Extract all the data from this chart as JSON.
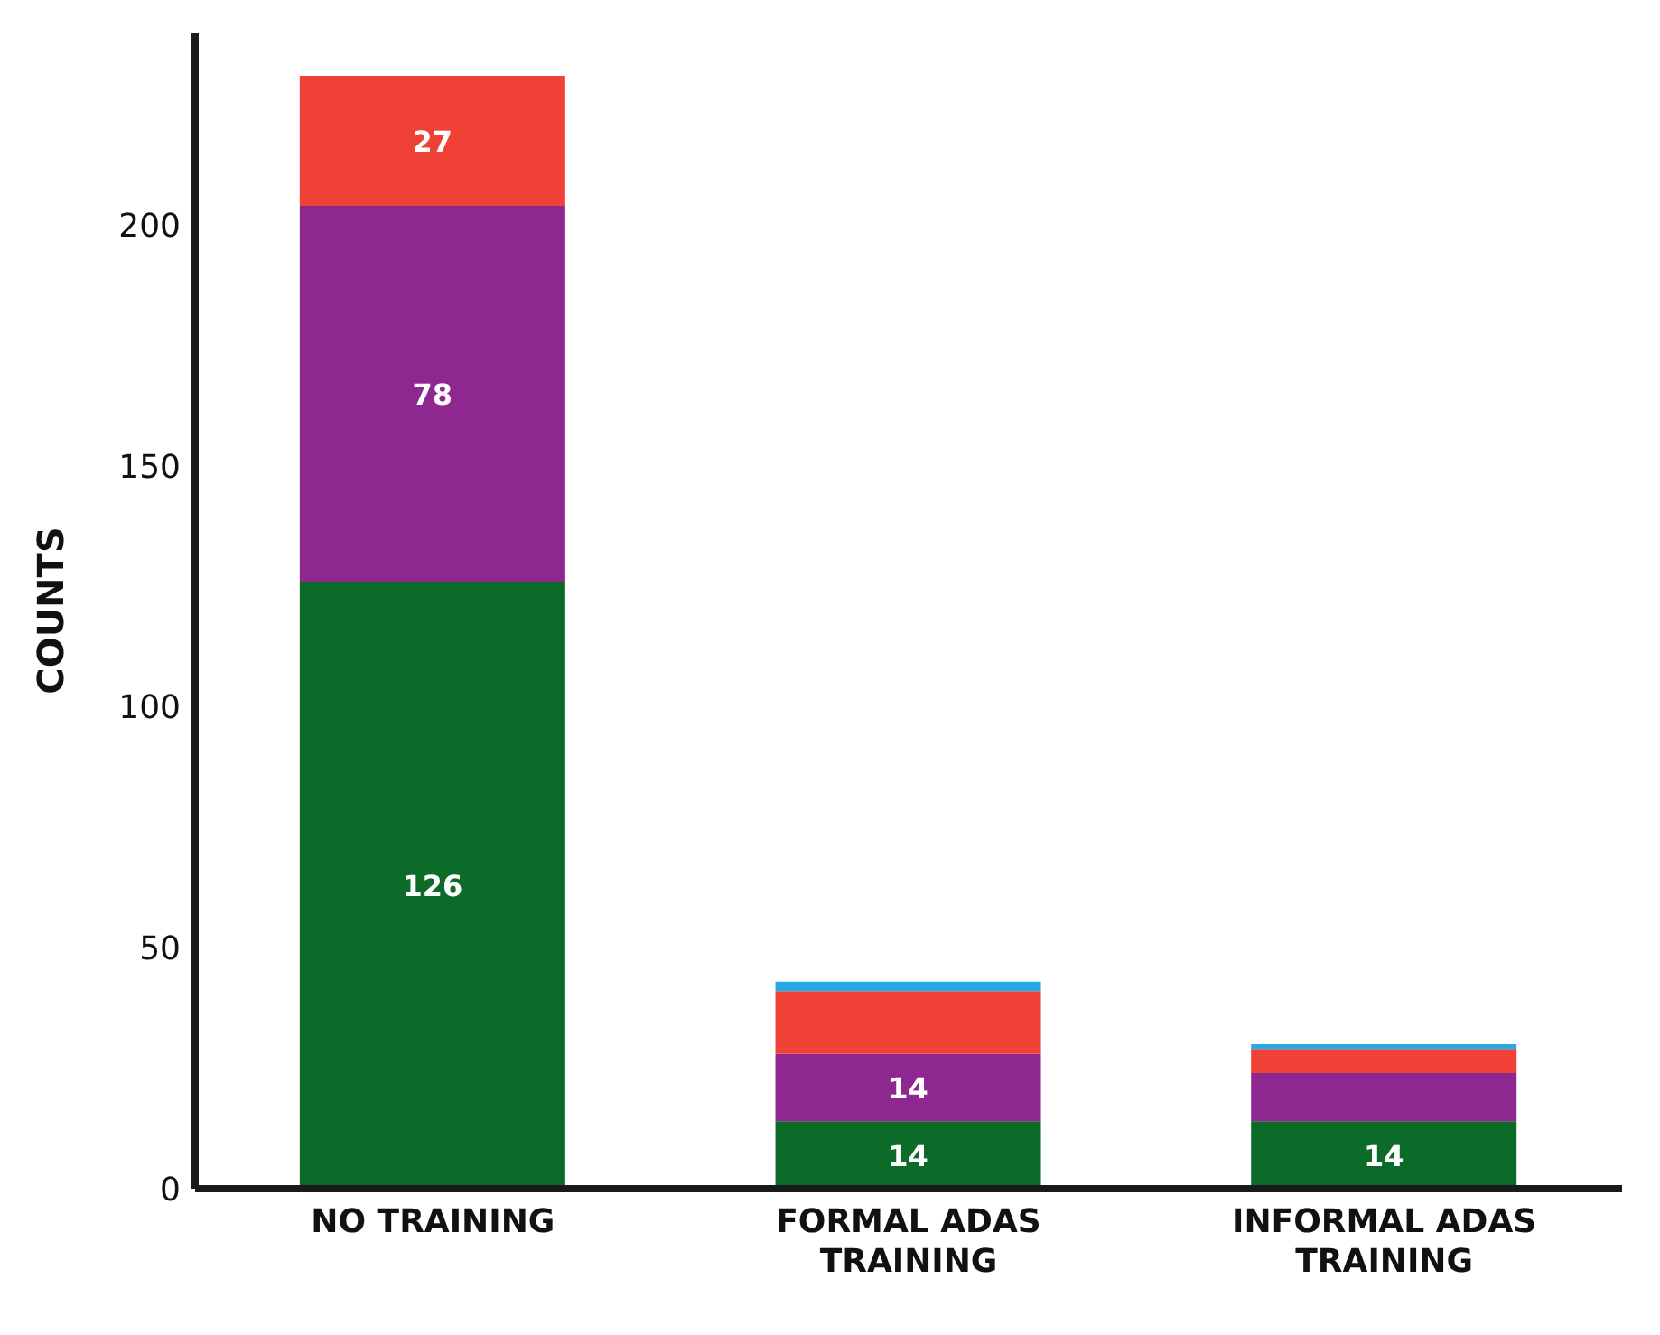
{
  "chart_data": {
    "type": "bar",
    "ylabel": "COUNTS",
    "categories": [
      "NO TRAINING",
      "FORMAL ADAS TRAINING",
      "INFORMAL ADAS TRAINING"
    ],
    "stacked": true,
    "ylim": [
      0,
      240
    ],
    "yticks": [
      0,
      50,
      100,
      150,
      200
    ],
    "grid": false,
    "legend": false,
    "series": [
      {
        "color": "#0d6b2a",
        "values": [
          126,
          14,
          14
        ],
        "value_labels": [
          "126",
          "14",
          "14"
        ]
      },
      {
        "color": "#8e278f",
        "values": [
          78,
          14,
          10
        ],
        "value_labels": [
          "78",
          "14",
          null
        ]
      },
      {
        "color": "#ef4136",
        "values": [
          27,
          13,
          5
        ],
        "value_labels": [
          "27",
          null,
          null
        ]
      },
      {
        "color": "#27aae1",
        "values": [
          0,
          2,
          1
        ],
        "value_labels": [
          null,
          null,
          null
        ]
      }
    ]
  }
}
